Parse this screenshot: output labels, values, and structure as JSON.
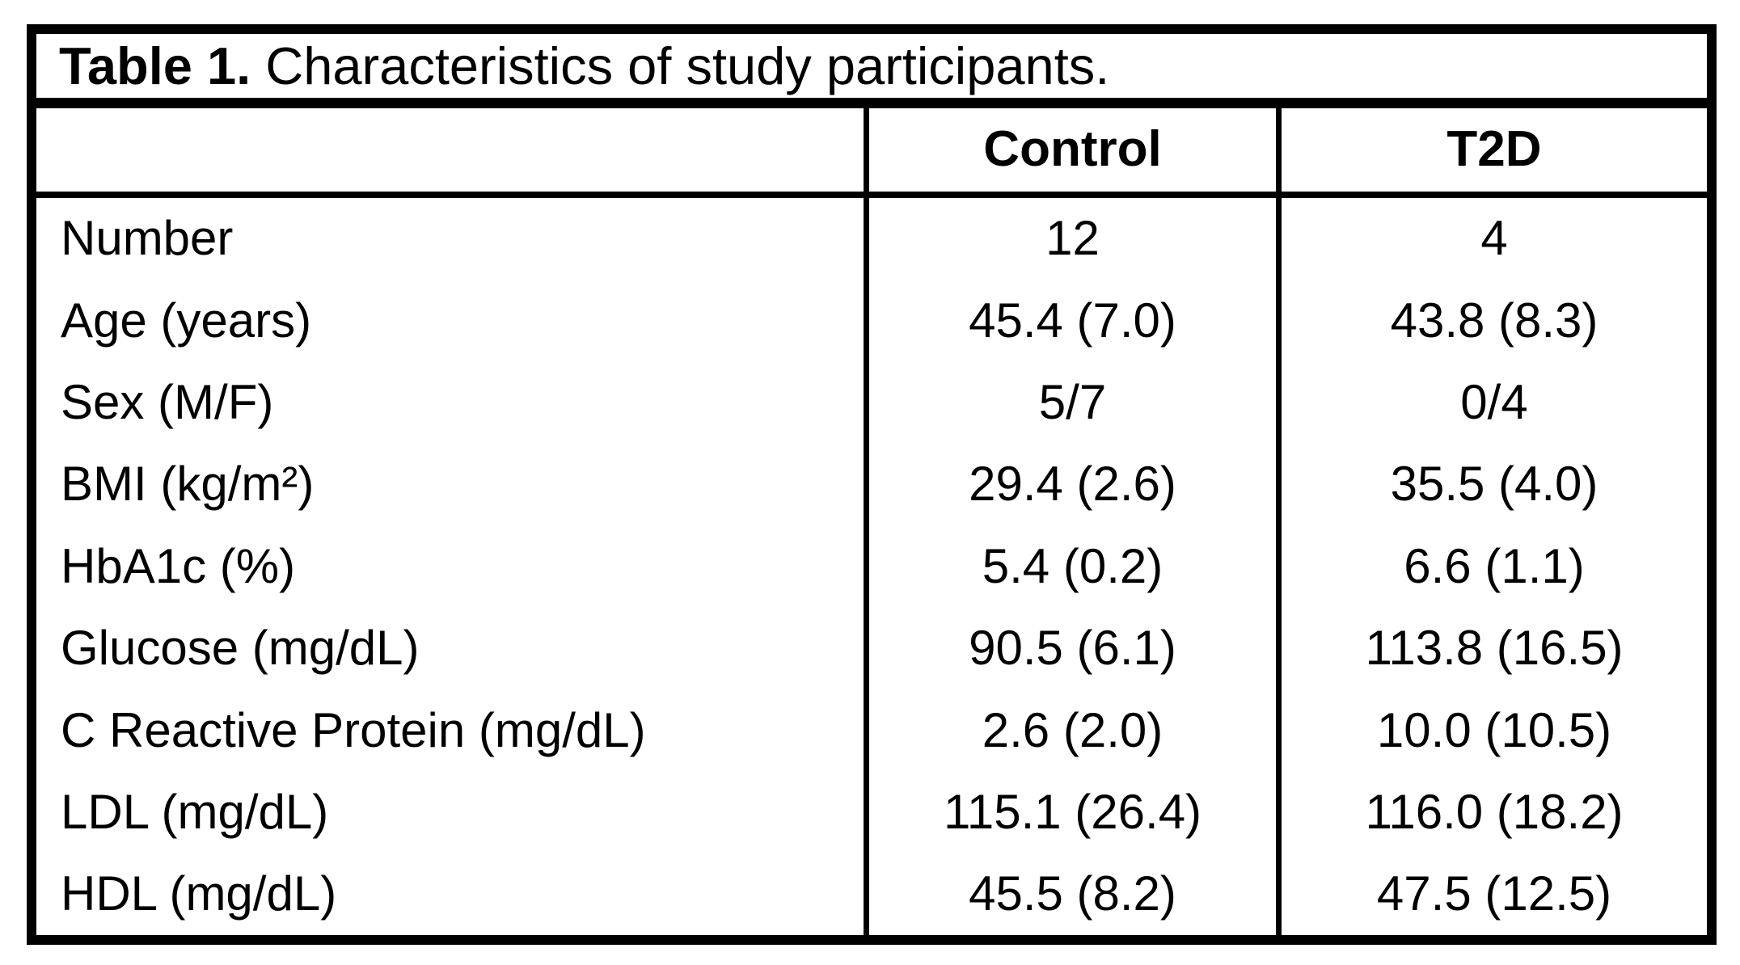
{
  "colors": {
    "background": "#ffffff",
    "text": "#000000",
    "border": "#000000"
  },
  "table": {
    "title": {
      "bold": "Table 1.",
      "rest": "Characteristics of study participants."
    },
    "columns": [
      "",
      "Control",
      "T2D"
    ],
    "rows": [
      {
        "label": "Number",
        "control": "12",
        "t2d": "4"
      },
      {
        "label": "Age (years)",
        "control": "45.4 (7.0)",
        "t2d": "43.8 (8.3)"
      },
      {
        "label": "Sex (M/F)",
        "control": "5/7",
        "t2d": "0/4"
      },
      {
        "label": "BMI (kg/m²)",
        "control": "29.4 (2.6)",
        "t2d": "35.5 (4.0)"
      },
      {
        "label": "HbA1c (%)",
        "control": "5.4 (0.2)",
        "t2d": "6.6 (1.1)"
      },
      {
        "label": "Glucose (mg/dL)",
        "control": "90.5 (6.1)",
        "t2d": "113.8 (16.5)"
      },
      {
        "label": "C Reactive Protein (mg/dL)",
        "control": "2.6 (2.0)",
        "t2d": "10.0 (10.5)"
      },
      {
        "label": "LDL (mg/dL)",
        "control": "115.1 (26.4)",
        "t2d": "116.0 (18.2)"
      },
      {
        "label": "HDL (mg/dL)",
        "control": "45.5 (8.2)",
        "t2d": "47.5 (12.5)"
      }
    ]
  }
}
